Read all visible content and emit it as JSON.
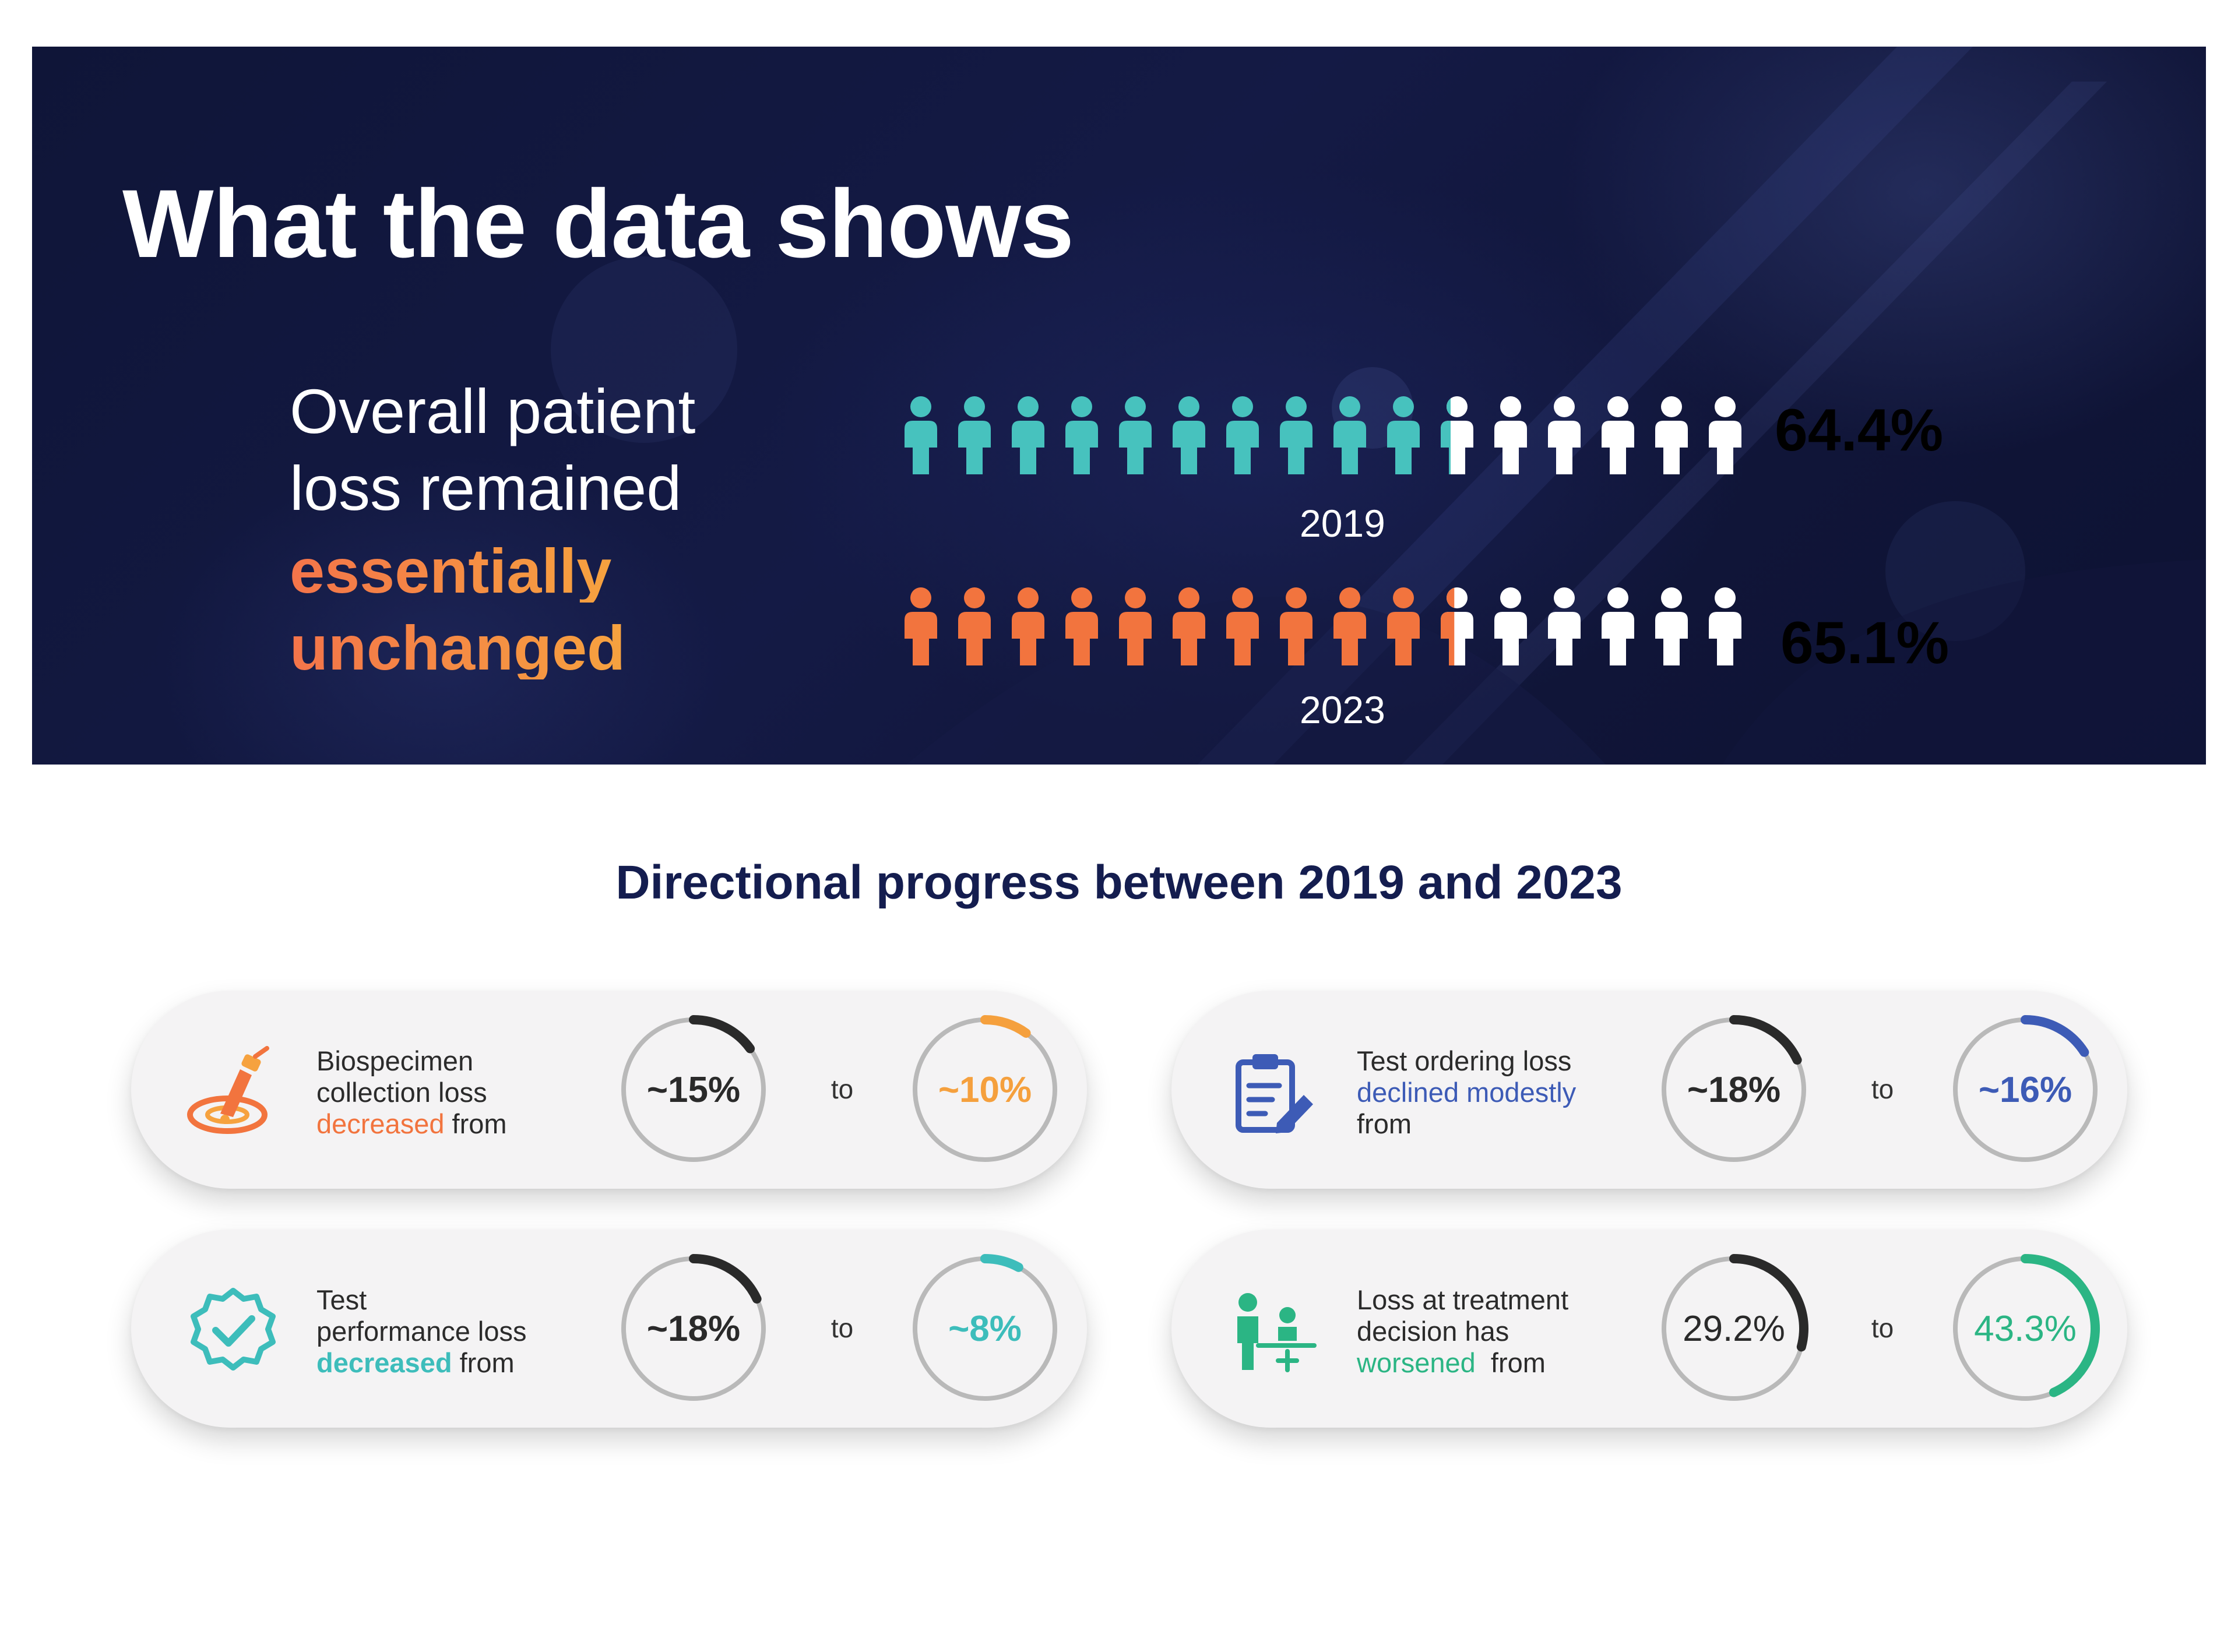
{
  "banner": {
    "title": "What the data shows",
    "lead_line1": "Overall patient",
    "lead_line2": "loss remained",
    "lead_highlight1": "essentially",
    "lead_highlight2": "unchanged"
  },
  "people_rows": [
    {
      "year": "2019",
      "value_label": "64.4%",
      "fraction": 0.644,
      "total_icons": 16,
      "color": "#47c2be"
    },
    {
      "year": "2023",
      "value_label": "65.1%",
      "fraction": 0.651,
      "total_icons": 16,
      "color": "#f2743e"
    }
  ],
  "section_title": "Directional progress between 2019 and 2023",
  "cards": [
    {
      "icon": "biospecimen-collection-icon",
      "line1": "Biospecimen",
      "line2": "collection loss",
      "highlight": "decreased",
      "suffix": " from",
      "accent": "#f2743e",
      "highlight_bold": false,
      "from": "~15%",
      "from_fraction": 0.15,
      "to_word": "to",
      "to": "~10%",
      "to_fraction": 0.1,
      "values_bold": true
    },
    {
      "icon": "clipboard-edit-icon",
      "line1": "Test ordering loss",
      "highlight": "declined modestly",
      "line3": "from",
      "accent": "#3d5bb6",
      "highlight_bold": false,
      "from": "~18%",
      "from_fraction": 0.18,
      "to_word": "to",
      "to": "~16%",
      "to_fraction": 0.16,
      "values_bold": true
    },
    {
      "icon": "verified-badge-icon",
      "line1": "Test",
      "line2": "performance loss",
      "highlight": "decreased",
      "suffix": " from",
      "accent": "#3dbdbb",
      "highlight_bold": true,
      "from": "~18%",
      "from_fraction": 0.18,
      "to_word": "to",
      "to": "~8%",
      "to_fraction": 0.08,
      "values_bold": true
    },
    {
      "icon": "treatment-decision-icon",
      "line1": "Loss at treatment",
      "line2": "decision has",
      "highlight": "worsened",
      "suffix": "  from",
      "accent": "#2bb584",
      "highlight_bold": false,
      "from": "29.2%",
      "from_fraction": 0.292,
      "to_word": "to",
      "to": "43.3%",
      "to_fraction": 0.433,
      "values_bold": false
    }
  ]
}
